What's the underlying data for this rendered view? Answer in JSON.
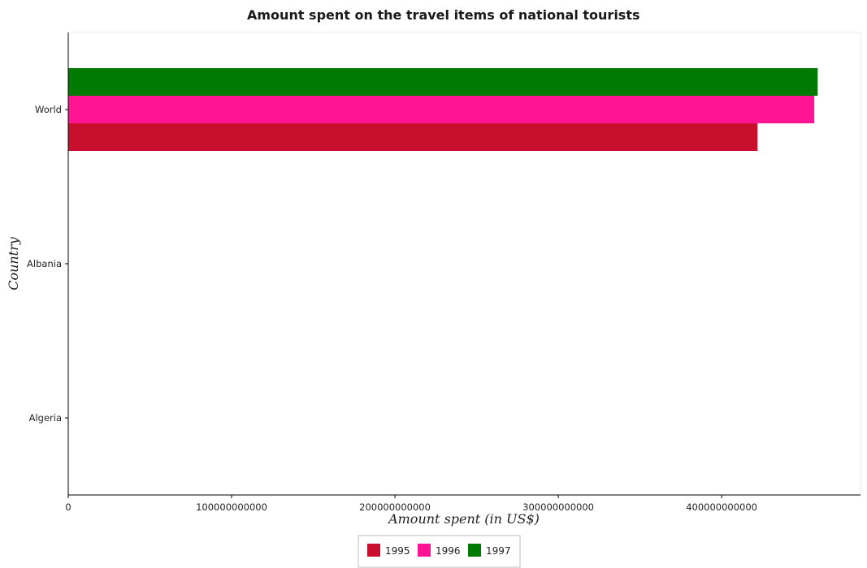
{
  "chart_data": {
    "type": "bar",
    "orientation": "horizontal",
    "title": "Amount spent on the travel items of national tourists",
    "xlabel": "Amount spent (in US$)",
    "ylabel": "Country",
    "categories": [
      "World",
      "Albania",
      "Algeria"
    ],
    "series": [
      {
        "name": "1995",
        "color": "#c8102e",
        "values": [
          422000000000,
          7000000,
          32000000
        ]
      },
      {
        "name": "1996",
        "color": "#ff1493",
        "values": [
          456700000000,
          11000000,
          31000000
        ]
      },
      {
        "name": "1997",
        "color": "#007a00",
        "values": [
          458800000000,
          13000000,
          28000000
        ]
      }
    ],
    "xlim": [
      0,
      485000000000
    ],
    "xticks": [
      0,
      100000000000,
      200000000000,
      300000000000,
      400000000000
    ],
    "xtick_labels": [
      "0",
      "100000000000",
      "200000000000",
      "300000000000",
      "400000000000"
    ],
    "legend_position": "bottom-center",
    "grid": false
  }
}
